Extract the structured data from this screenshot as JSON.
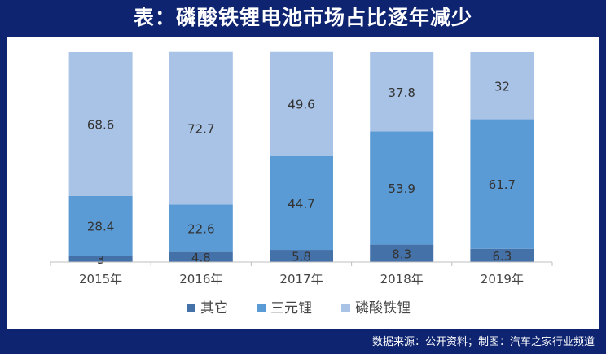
{
  "title": "表：磷酸铁锂电池市场占比逐年减少",
  "source": "数据来源：公开资料；制图：汽车之家行业频道",
  "colors": {
    "background": "#0e2470",
    "panel": "#ffffff",
    "其它": "#4472a8",
    "三元锂": "#5b9bd5",
    "磷酸铁锂": "#a9c3e6"
  },
  "chart_data": {
    "type": "bar",
    "stacked": true,
    "categories": [
      "2015年",
      "2016年",
      "2017年",
      "2018年",
      "2019年"
    ],
    "series": [
      {
        "name": "其它",
        "values": [
          3,
          4.8,
          5.8,
          8.3,
          6.3
        ]
      },
      {
        "name": "三元锂",
        "values": [
          28.4,
          22.6,
          44.7,
          53.9,
          61.7
        ]
      },
      {
        "name": "磷酸铁锂",
        "values": [
          68.6,
          72.7,
          49.6,
          37.8,
          32
        ]
      }
    ],
    "ylim": [
      0,
      100
    ],
    "grid": false,
    "legend": "bottom",
    "data_labels": true
  }
}
